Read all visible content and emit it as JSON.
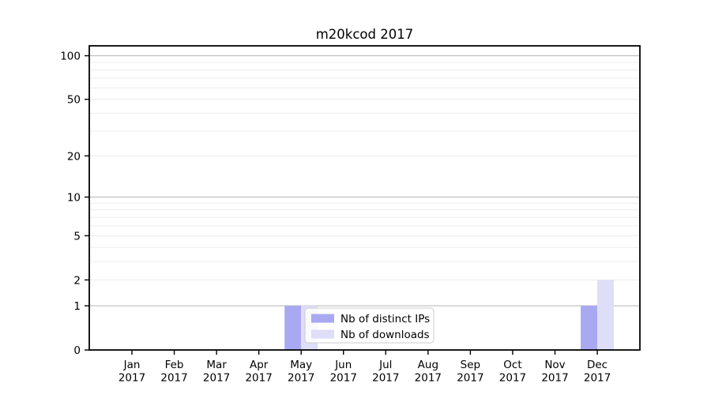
{
  "page": {
    "background": "#ffffff"
  },
  "chart_data": {
    "type": "bar",
    "title": "m20kcod 2017",
    "categories": [
      "Jan 2017",
      "Feb 2017",
      "Mar 2017",
      "Apr 2017",
      "May 2017",
      "Jun 2017",
      "Jul 2017",
      "Aug 2017",
      "Sep 2017",
      "Oct 2017",
      "Nov 2017",
      "Dec 2017"
    ],
    "x_tick_month": [
      "Jan",
      "Feb",
      "Mar",
      "Apr",
      "May",
      "Jun",
      "Jul",
      "Aug",
      "Sep",
      "Oct",
      "Nov",
      "Dec"
    ],
    "x_tick_year": "2017",
    "series": [
      {
        "name": "Nb of distinct IPs",
        "color": "#a9a9f2",
        "values": [
          0,
          0,
          0,
          0,
          1,
          0,
          0,
          0,
          0,
          0,
          0,
          1
        ]
      },
      {
        "name": "Nb of downloads",
        "color": "#dedef8",
        "values": [
          0,
          0,
          0,
          0,
          1,
          0,
          0,
          0,
          0,
          0,
          0,
          2
        ]
      }
    ],
    "y_scale": "log10(1+v)",
    "ylim": [
      0,
      117
    ],
    "y_ticks": [
      0,
      1,
      2,
      5,
      10,
      20,
      50,
      100
    ],
    "y_major_gridlines": [
      1,
      10,
      100
    ],
    "y_minor_gridlines": [
      2,
      3,
      4,
      5,
      6,
      7,
      8,
      9,
      20,
      30,
      40,
      50,
      60,
      70,
      80,
      90
    ],
    "grid": "horizontal only",
    "legend_position": "inside lower-center",
    "colors": {
      "axis": "#000000",
      "grid_major": "#bdbdbd",
      "grid_minor": "#ececec",
      "legend_border": "#cccccc",
      "legend_bg": "#ffffff"
    }
  }
}
